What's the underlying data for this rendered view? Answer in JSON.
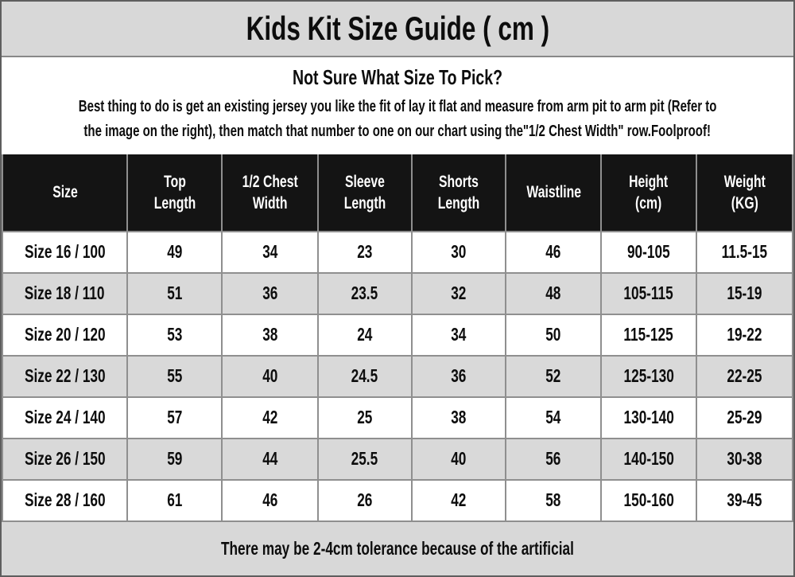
{
  "title": "Kids Kit Size Guide ( cm )",
  "intro": {
    "heading": "Not Sure What Size To Pick?",
    "line1": "Best thing to do is get an existing jersey you like the fit of lay it flat and measure from arm pit to arm pit (Refer to",
    "line2": "the image on the right), then match that number to one on our chart using the\"1/2 Chest Width\" row.Foolproof!"
  },
  "table": {
    "headers": [
      "Size",
      "Top\nLength",
      "1/2 Chest\nWidth",
      "Sleeve\nLength",
      "Shorts\nLength",
      "Waistline",
      "Height\n(cm)",
      "Weight\n(KG)"
    ],
    "rows": [
      [
        "Size 16 / 100",
        "49",
        "34",
        "23",
        "30",
        "46",
        "90-105",
        "11.5-15"
      ],
      [
        "Size 18 / 110",
        "51",
        "36",
        "23.5",
        "32",
        "48",
        "105-115",
        "15-19"
      ],
      [
        "Size 20 / 120",
        "53",
        "38",
        "24",
        "34",
        "50",
        "115-125",
        "19-22"
      ],
      [
        "Size 22 / 130",
        "55",
        "40",
        "24.5",
        "36",
        "52",
        "125-130",
        "22-25"
      ],
      [
        "Size 24 / 140",
        "57",
        "42",
        "25",
        "38",
        "54",
        "130-140",
        "25-29"
      ],
      [
        "Size 26 / 150",
        "59",
        "44",
        "25.5",
        "40",
        "56",
        "140-150",
        "30-38"
      ],
      [
        "Size 28 / 160",
        "61",
        "46",
        "26",
        "42",
        "58",
        "150-160",
        "39-45"
      ]
    ]
  },
  "footer_note": "There may be 2-4cm tolerance because of the artificial",
  "colors": {
    "title_bar_bg": "#d8d8d8",
    "header_bg": "#141414",
    "header_text": "#ffffff",
    "row_shaded_bg": "#d9d9d9",
    "row_plain_bg": "#ffffff",
    "cell_border": "#8f8f8f",
    "text": "#0d0d0d"
  }
}
